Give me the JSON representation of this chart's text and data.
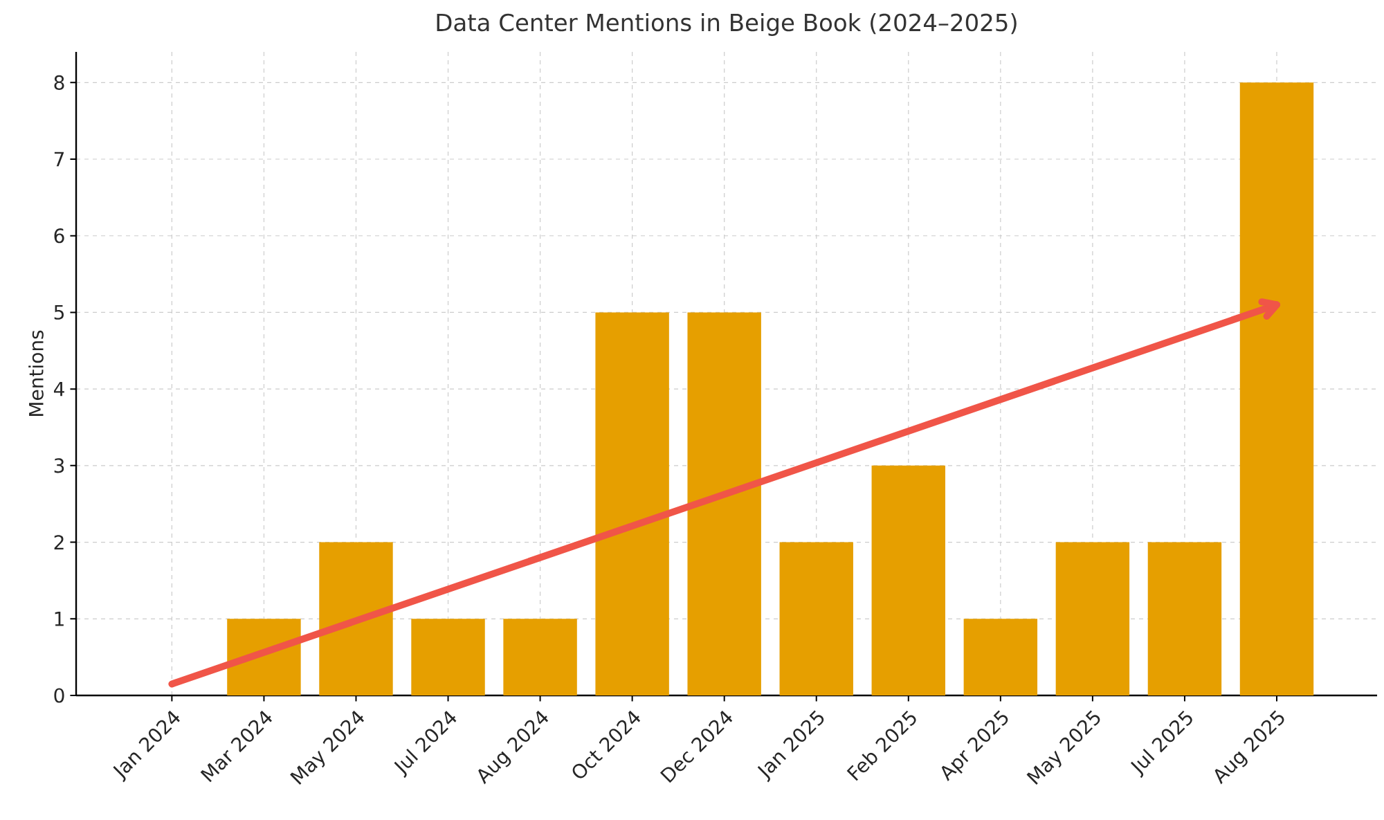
{
  "chart_data": {
    "type": "bar",
    "title": "Data Center Mentions in Beige Book (2024–2025)",
    "ylabel": "Mentions",
    "categories": [
      "Jan 2024",
      "Mar 2024",
      "May 2024",
      "Jul 2024",
      "Aug 2024",
      "Oct 2024",
      "Dec 2024",
      "Jan 2025",
      "Feb 2025",
      "Apr 2025",
      "May 2025",
      "Jul 2025",
      "Aug 2025"
    ],
    "series": [
      {
        "color": "#e69f00",
        "values": [
          0,
          1,
          2,
          1,
          1,
          5,
          5,
          2,
          3,
          1,
          2,
          2,
          8
        ]
      },
      {
        "type": "line",
        "color": "#f05548",
        "x": [
          "Jan 2024",
          "Aug 2025"
        ],
        "values": [
          0.15,
          5.1
        ]
      }
    ],
    "ylim": [
      0,
      8.4
    ],
    "yticks": [
      0,
      1,
      2,
      3,
      4,
      5,
      6,
      7,
      8
    ],
    "grid": true
  }
}
